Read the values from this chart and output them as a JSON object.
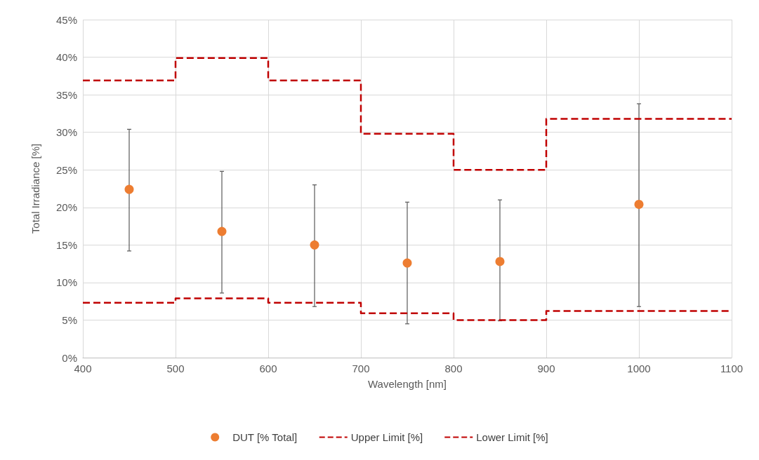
{
  "chart_data": {
    "type": "scatter",
    "xlabel": "Wavelength [nm]",
    "ylabel": "Total Irradiance [%]",
    "xlim": [
      400,
      1100
    ],
    "xticks": [
      400,
      500,
      600,
      700,
      800,
      900,
      1000,
      1100
    ],
    "ylim": [
      0,
      45
    ],
    "yticks": [
      {
        "value": 0,
        "label": "0%"
      },
      {
        "value": 5,
        "label": "5%"
      },
      {
        "value": 10,
        "label": "10%"
      },
      {
        "value": 15,
        "label": "15%"
      },
      {
        "value": 20,
        "label": "20%"
      },
      {
        "value": 25,
        "label": "25%"
      },
      {
        "value": 30,
        "label": "30%"
      },
      {
        "value": 35,
        "label": "35%"
      },
      {
        "value": 40,
        "label": "40%"
      },
      {
        "value": 45,
        "label": "45%"
      }
    ],
    "grid": true,
    "legend": "bottom",
    "series": [
      {
        "name": "DUT [% Total]",
        "color": "#ed7d31",
        "marker": "circle",
        "x": [
          450,
          550,
          650,
          750,
          850,
          1000
        ],
        "values": [
          22.4,
          16.8,
          15.0,
          12.6,
          12.8,
          20.4
        ],
        "errors": [
          [
            14.2,
            30.4
          ],
          [
            8.6,
            24.8
          ],
          [
            6.8,
            23.0
          ],
          [
            4.5,
            20.7
          ],
          [
            4.9,
            21.0
          ],
          [
            6.8,
            33.8
          ]
        ]
      },
      {
        "name": "Upper Limit [%]",
        "type": "step",
        "color": "#c00000",
        "line_style": "dashed",
        "x": [
          400,
          500,
          600,
          700,
          800,
          900,
          1100
        ],
        "values": [
          36.9,
          39.9,
          36.9,
          29.8,
          25.0,
          31.8,
          31.8
        ]
      },
      {
        "name": "Lower Limit [%]",
        "type": "step",
        "color": "#c00000",
        "line_style": "dashed",
        "x": [
          400,
          500,
          600,
          700,
          800,
          900,
          1100
        ],
        "values": [
          7.3,
          7.9,
          7.3,
          5.9,
          5.0,
          6.2,
          6.2
        ]
      }
    ]
  }
}
